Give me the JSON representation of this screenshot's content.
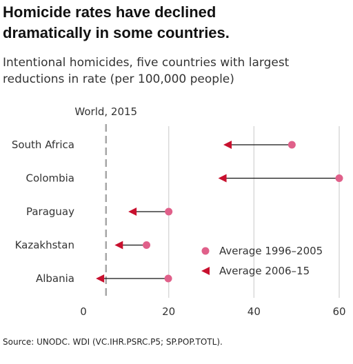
{
  "header": {
    "title_line1": "Homicide rates have declined",
    "title_line2": "dramatically in some countries.",
    "subtitle_line1": "Intentional homicides, five countries with largest",
    "subtitle_line2": "reductions in rate (per 100,000 people)"
  },
  "footer": {
    "source": "Source: UNODC. WDI (VC.IHR.PSRC.P5; SP.POP.TOTL)."
  },
  "colors": {
    "start": "#e0608a",
    "end": "#c8102e",
    "grid": "#d9d9d9",
    "reference": "#a6a6a6",
    "connector": "#111111"
  },
  "chart_data": {
    "type": "dumbbell",
    "categories": [
      "South Africa",
      "Colombia",
      "Paraguay",
      "Kazakhstan",
      "Albania"
    ],
    "series": [
      {
        "name": "Average 1996–2005",
        "marker": "circle",
        "values": [
          48.9,
          60.0,
          20.0,
          14.8,
          19.9
        ]
      },
      {
        "name": "Average 2006–15",
        "marker": "triangle-left",
        "values": [
          33.8,
          32.6,
          11.5,
          8.3,
          3.9
        ]
      }
    ],
    "reference_line": {
      "label": "World, 2015",
      "value": 5.3
    },
    "xlim": [
      0,
      62
    ],
    "xticks": [
      "0",
      "20",
      "40",
      "60"
    ],
    "xtick_values": [
      0,
      20,
      40,
      60
    ],
    "grid": "vertical",
    "legend_position": "bottom-right"
  }
}
